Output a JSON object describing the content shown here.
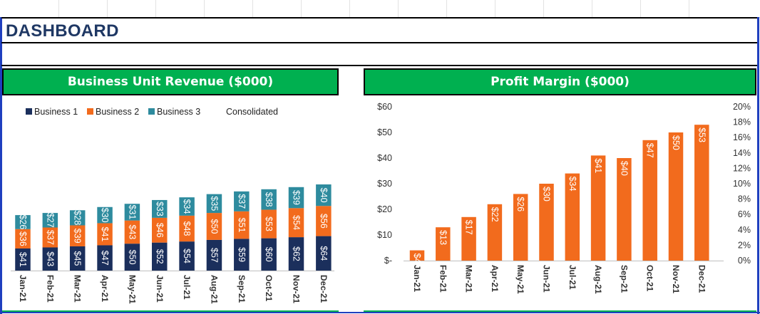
{
  "dashboard": {
    "title": "DASHBOARD"
  },
  "colors": {
    "business1": "#1b2f5c",
    "business2": "#f26b1d",
    "business3": "#2e8b9e",
    "profit": "#f26b1d",
    "header_green": "#00b050",
    "title_blue": "#1f3864"
  },
  "chart_data": [
    {
      "type": "bar",
      "stacked": true,
      "title": "Business Unit Revenue ($000)",
      "categories": [
        "Jan-21",
        "Feb-21",
        "Mar-21",
        "Apr-21",
        "May-21",
        "Jun-21",
        "Jul-21",
        "Aug-21",
        "Sep-21",
        "Oct-21",
        "Nov-21",
        "Dec-21"
      ],
      "series": [
        {
          "name": "Business 1",
          "values": [
            41,
            43,
            45,
            47,
            50,
            52,
            54,
            57,
            59,
            60,
            62,
            64
          ],
          "labels": [
            "$41",
            "$43",
            "$45",
            "$47",
            "$50",
            "$52",
            "$54",
            "$57",
            "$59",
            "$60",
            "$62",
            "$64"
          ]
        },
        {
          "name": "Business 2",
          "values": [
            36,
            37,
            39,
            41,
            43,
            46,
            48,
            50,
            51,
            53,
            54,
            56
          ],
          "labels": [
            "$36",
            "$37",
            "$39",
            "$41",
            "$43",
            "$46",
            "$48",
            "$50",
            "$51",
            "$53",
            "$54",
            "$56"
          ]
        },
        {
          "name": "Business 3",
          "values": [
            26,
            27,
            28,
            30,
            31,
            33,
            34,
            35,
            37,
            38,
            39,
            40
          ],
          "labels": [
            "$26",
            "$27",
            "$28",
            "$30",
            "$31",
            "$33",
            "$34",
            "$35",
            "$37",
            "$38",
            "$39",
            "$40"
          ]
        }
      ],
      "legend": [
        "Business 1",
        "Business 2",
        "Business 3",
        "Consolidated"
      ],
      "legend_position": "top-left",
      "grid": false
    },
    {
      "type": "bar",
      "title": "Profit Margin ($000)",
      "categories": [
        "Jan-21",
        "Feb-21",
        "Mar-21",
        "Apr-21",
        "May-21",
        "Jun-21",
        "Jul-21",
        "Aug-21",
        "Sep-21",
        "Oct-21",
        "Nov-21",
        "Dec-21"
      ],
      "values": [
        4,
        13,
        17,
        22,
        26,
        30,
        34,
        41,
        40,
        47,
        50,
        53
      ],
      "labels": [
        "$4",
        "$13",
        "$17",
        "$22",
        "$26",
        "$30",
        "$34",
        "$41",
        "$40",
        "$47",
        "$50",
        "$53"
      ],
      "ylim": [
        0,
        60
      ],
      "yticks": [
        "$-",
        "$10",
        "$20",
        "$30",
        "$40",
        "$50",
        "$60"
      ],
      "y2lim": [
        0,
        20
      ],
      "y2ticks": [
        "0%",
        "2%",
        "4%",
        "6%",
        "8%",
        "10%",
        "12%",
        "14%",
        "16%",
        "18%",
        "20%"
      ],
      "grid": false
    }
  ]
}
